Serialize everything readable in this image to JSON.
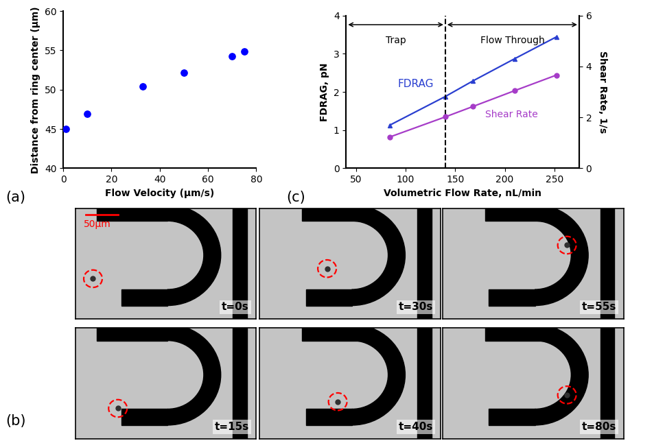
{
  "chart_data": [
    {
      "panel_label": "(a)",
      "type": "scatter",
      "x_label": "Flow Velocity (µm/s)",
      "y_label": "Distance from ring center (µm)",
      "x": [
        1,
        10,
        33,
        50,
        70,
        75
      ],
      "values": [
        45.0,
        46.9,
        50.4,
        52.2,
        54.3,
        54.9
      ],
      "color": "#0000ff",
      "marker": "circle",
      "xlim": [
        0,
        80
      ],
      "xticks": [
        0,
        20,
        40,
        60,
        80
      ],
      "ylim": [
        40,
        60
      ],
      "yticks": [
        40,
        45,
        50,
        55,
        60
      ]
    },
    {
      "panel_label": "(c)",
      "type": "line",
      "x_label": "Volumetric Flow Rate, nL/min",
      "y_label": "FDRAG, pN",
      "y2_label": "Shear Rate, 1/s",
      "x": [
        84,
        140,
        168,
        210,
        252
      ],
      "series": [
        {
          "name": "FDRAG",
          "color": "#2a3fd0",
          "marker": "triangle",
          "values": [
            1.13,
            1.88,
            2.29,
            2.87,
            3.44
          ]
        },
        {
          "name": "Shear Rate",
          "color": "#a63cc8",
          "marker": "circle",
          "axis": "y2",
          "values": [
            1.23,
            2.02,
            2.43,
            3.05,
            3.66
          ]
        }
      ],
      "xlim": [
        40,
        275
      ],
      "xticks": [
        50,
        100,
        150,
        200,
        250
      ],
      "ylim": [
        0,
        4
      ],
      "yticks": [
        0,
        1,
        2,
        3,
        4
      ],
      "y2lim": [
        0,
        6
      ],
      "y2ticks": [
        0,
        2,
        4,
        6
      ],
      "divider_x": 140,
      "annotations": [
        "Trap",
        "Flow Through"
      ]
    }
  ],
  "image_panel": {
    "panel_label": "(b)",
    "scale_bar": "50µm",
    "frames": [
      "t=0s",
      "t=30s",
      "t=55s",
      "t=15s",
      "t=40s",
      "t=80s"
    ]
  }
}
